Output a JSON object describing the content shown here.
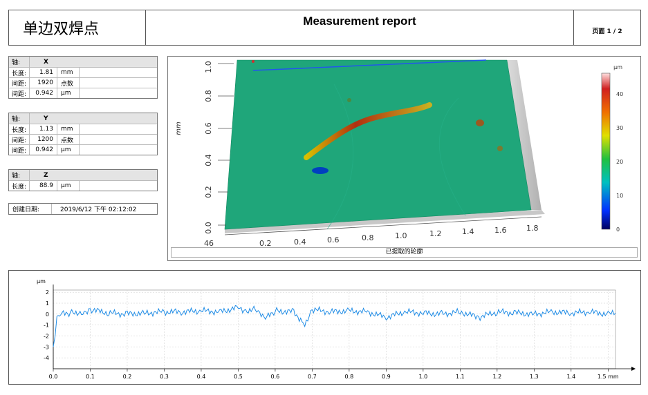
{
  "header": {
    "title_cn": "单边双焊点",
    "report_title": "Measurement report",
    "page": "页面 1 / 2"
  },
  "axes": [
    {
      "label": "轴:",
      "name": "X",
      "rows": [
        {
          "k": "长度:",
          "v": "1.81",
          "u": "mm"
        },
        {
          "k": "间距:",
          "v": "1920",
          "u": "点数"
        },
        {
          "k": "间距:",
          "v": "0.942",
          "u": "µm"
        }
      ]
    },
    {
      "label": "轴:",
      "name": "Y",
      "rows": [
        {
          "k": "长度:",
          "v": "1.13",
          "u": "mm"
        },
        {
          "k": "间距:",
          "v": "1200",
          "u": "点数"
        },
        {
          "k": "间距:",
          "v": "0.942",
          "u": "µm"
        }
      ]
    },
    {
      "label": "轴:",
      "name": "Z",
      "rows": [
        {
          "k": "长度:",
          "v": "88.9",
          "u": "µm"
        }
      ]
    }
  ],
  "created": {
    "label": "创建日期:",
    "value": "2019/6/12 下午 02:12:02"
  },
  "view3d": {
    "caption": "已提取的轮廓",
    "y_axis_label": "mm",
    "y_ticks": [
      "1.0",
      "0.8",
      "0.6",
      "0.4",
      "0.2",
      "0.0"
    ],
    "x_ticks": [
      "46",
      "0.2",
      "0.4",
      "0.6",
      "0.8",
      "1.0",
      "1.2",
      "1.4",
      "1.6",
      "1.8"
    ],
    "colorbar": {
      "unit": "µm",
      "ticks": [
        "40",
        "30",
        "20",
        "10",
        "0"
      ]
    },
    "surface_color": "#1fa67a"
  },
  "chart_data": {
    "type": "line",
    "title": "",
    "xlabel": "mm",
    "ylabel": "µm",
    "xlim": [
      0.0,
      1.52
    ],
    "ylim": [
      -5,
      2.2
    ],
    "x_ticks": [
      "0.0",
      "0.1",
      "0.2",
      "0.3",
      "0.4",
      "0.5",
      "0.6",
      "0.7",
      "0.8",
      "0.9",
      "1.0",
      "1.1",
      "1.2",
      "1.3",
      "1.4",
      "1.5 mm"
    ],
    "y_ticks": [
      "2",
      "1",
      "0",
      "-1",
      "-2",
      "-3",
      "-4"
    ],
    "grid": true,
    "color": "#1f8ce6",
    "series": [
      {
        "x": [
          0.0,
          0.005,
          0.01,
          0.02,
          0.05,
          0.08,
          0.1,
          0.15,
          0.2,
          0.25,
          0.3,
          0.35,
          0.4,
          0.45,
          0.5,
          0.52,
          0.55,
          0.57,
          0.6,
          0.65,
          0.68,
          0.7,
          0.75,
          0.8,
          0.85,
          0.9,
          0.95,
          1.0,
          1.05,
          1.1,
          1.15,
          1.2,
          1.25,
          1.3,
          1.35,
          1.4,
          1.45,
          1.5,
          1.52
        ],
        "y": [
          -3.0,
          -2.0,
          -0.2,
          0.0,
          0.1,
          0.2,
          0.4,
          0.1,
          0.0,
          0.1,
          0.2,
          0.2,
          0.3,
          0.2,
          0.6,
          0.3,
          0.5,
          -0.5,
          0.3,
          0.2,
          -0.9,
          0.4,
          0.2,
          0.3,
          0.2,
          -0.3,
          0.2,
          0.1,
          0.0,
          0.2,
          -0.3,
          0.2,
          0.1,
          0.0,
          0.2,
          0.1,
          0.2,
          0.0,
          0.1
        ]
      }
    ]
  }
}
